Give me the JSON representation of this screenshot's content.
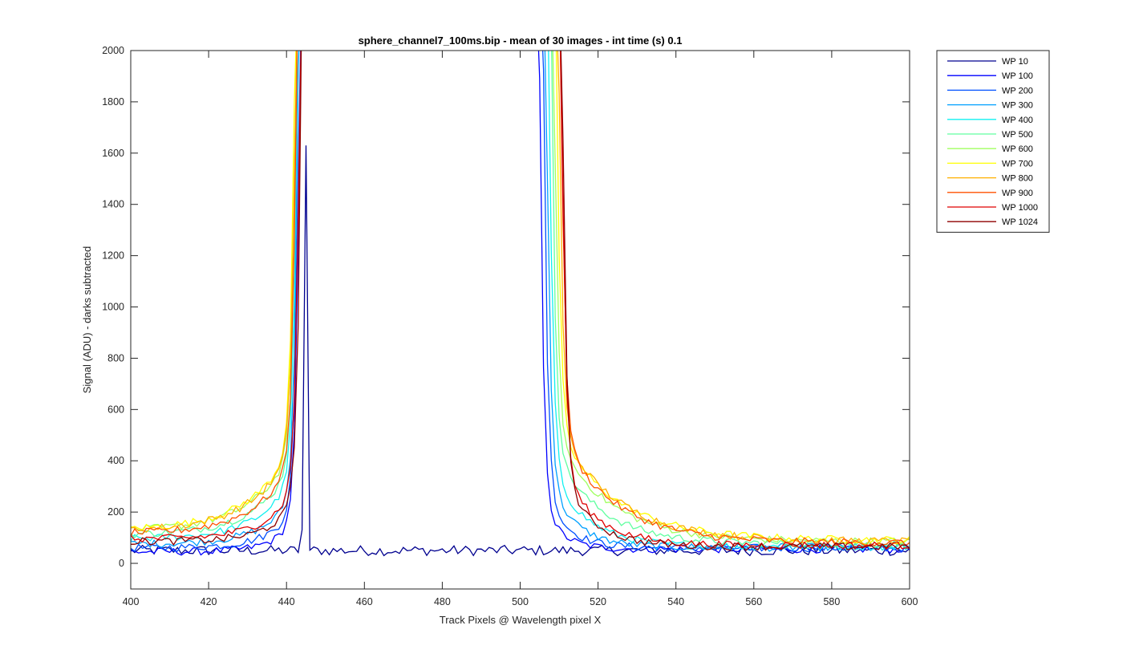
{
  "chart_data": {
    "type": "line",
    "title": "sphere_channel7_100ms.bip - mean of 30 images - int time (s) 0.1",
    "xlabel": "Track Pixels @ Wavelength pixel X",
    "ylabel": "Signal (ADU) - darks subtracted",
    "xlim": [
      400,
      600
    ],
    "ylim": [
      -100,
      2000
    ],
    "xticks": [
      400,
      420,
      440,
      460,
      480,
      500,
      520,
      540,
      560,
      580,
      600
    ],
    "yticks": [
      0,
      200,
      400,
      600,
      800,
      1000,
      1200,
      1400,
      1600,
      1800,
      2000
    ],
    "grid": false,
    "legend_position": "outside-top-right",
    "series": [
      {
        "name": "WP 10",
        "color": "#00008f",
        "base_left": 50,
        "base_right": 50,
        "left_edge": 445,
        "right_edge": 504,
        "single": true
      },
      {
        "name": "WP 100",
        "color": "#0000ff",
        "base_left": 45,
        "base_right": 55,
        "left_edge": 444.4,
        "right_edge": 504,
        "amp_left": 170,
        "amp_right": 230,
        "tau_left": 6,
        "tau_right": 5
      },
      {
        "name": "WP 200",
        "color": "#0050ff",
        "base_left": 60,
        "base_right": 60,
        "left_edge": 444.2,
        "right_edge": 505,
        "amp_left": 200,
        "amp_right": 260,
        "tau_left": 7,
        "tau_right": 6
      },
      {
        "name": "WP 300",
        "color": "#00a0ff",
        "base_left": 75,
        "base_right": 62,
        "left_edge": 444,
        "right_edge": 505.7,
        "amp_left": 240,
        "amp_right": 320,
        "tau_left": 8,
        "tau_right": 7
      },
      {
        "name": "WP 400",
        "color": "#10f0f0",
        "base_left": 95,
        "base_right": 65,
        "left_edge": 443.8,
        "right_edge": 506.4,
        "amp_left": 300,
        "amp_right": 360,
        "tau_left": 9,
        "tau_right": 9
      },
      {
        "name": "WP 500",
        "color": "#60ffa0",
        "base_left": 110,
        "base_right": 75,
        "left_edge": 443.6,
        "right_edge": 507,
        "amp_left": 330,
        "amp_right": 420,
        "tau_left": 10,
        "tau_right": 12
      },
      {
        "name": "WP 600",
        "color": "#a0ff60",
        "base_left": 125,
        "base_right": 85,
        "left_edge": 443.4,
        "right_edge": 507.6,
        "amp_left": 360,
        "amp_right": 450,
        "tau_left": 11,
        "tau_right": 14
      },
      {
        "name": "WP 700",
        "color": "#ffff00",
        "base_left": 130,
        "base_right": 90,
        "left_edge": 443.2,
        "right_edge": 508.2,
        "amp_left": 380,
        "amp_right": 470,
        "tau_left": 11,
        "tau_right": 15
      },
      {
        "name": "WP 800",
        "color": "#ffb000",
        "base_left": 125,
        "base_right": 85,
        "left_edge": 443.4,
        "right_edge": 508.8,
        "amp_left": 370,
        "amp_right": 470,
        "tau_left": 11,
        "tau_right": 15
      },
      {
        "name": "WP 900",
        "color": "#ff5000",
        "base_left": 115,
        "base_right": 80,
        "left_edge": 443.6,
        "right_edge": 509.4,
        "amp_left": 340,
        "amp_right": 450,
        "tau_left": 10,
        "tau_right": 14
      },
      {
        "name": "WP 1000",
        "color": "#e00000",
        "base_left": 95,
        "base_right": 70,
        "left_edge": 444.4,
        "right_edge": 509.6,
        "amp_left": 250,
        "amp_right": 330,
        "tau_left": 8,
        "tau_right": 9
      },
      {
        "name": "WP 1024",
        "color": "#8f0000",
        "base_left": 85,
        "base_right": 65,
        "left_edge": 444.8,
        "right_edge": 509.8,
        "amp_left": 220,
        "amp_right": 300,
        "tau_left": 7,
        "tau_right": 8
      }
    ]
  }
}
